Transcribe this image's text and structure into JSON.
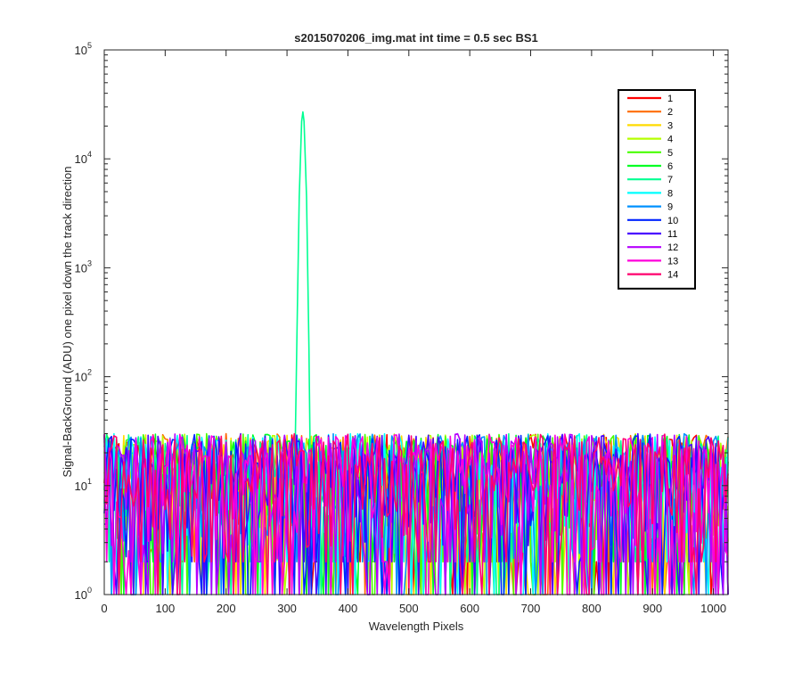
{
  "chart_data": {
    "type": "line",
    "title": "s2015070206_img.mat int time = 0.5 sec   BS1",
    "xlabel": "Wavelength Pixels",
    "ylabel": "Signal-BackGround (ADU) one pixel down the track direction",
    "xlim": [
      0,
      1024
    ],
    "ylim": [
      1,
      100000
    ],
    "yscale": "log",
    "grid": false,
    "legend_position": "top-right",
    "x_ticks": [
      "0",
      "100",
      "200",
      "300",
      "400",
      "500",
      "600",
      "700",
      "800",
      "900",
      "1000"
    ],
    "y_ticks": [
      {
        "base": "10",
        "exp": "0"
      },
      {
        "base": "10",
        "exp": "1"
      },
      {
        "base": "10",
        "exp": "2"
      },
      {
        "base": "10",
        "exp": "3"
      },
      {
        "base": "10",
        "exp": "4"
      },
      {
        "base": "10",
        "exp": "5"
      }
    ],
    "noise_floor_range": [
      1,
      30
    ],
    "peak": {
      "series": "7",
      "x": 326,
      "y": 27000
    },
    "series": [
      {
        "name": "1",
        "color": "#ff0000"
      },
      {
        "name": "2",
        "color": "#ff6d00"
      },
      {
        "name": "3",
        "color": "#ffdb00"
      },
      {
        "name": "4",
        "color": "#b6ff00"
      },
      {
        "name": "5",
        "color": "#49ff00"
      },
      {
        "name": "6",
        "color": "#00ff24"
      },
      {
        "name": "7",
        "color": "#00ff92"
      },
      {
        "name": "8",
        "color": "#00ffff"
      },
      {
        "name": "9",
        "color": "#0092ff"
      },
      {
        "name": "10",
        "color": "#0024ff"
      },
      {
        "name": "11",
        "color": "#4900ff"
      },
      {
        "name": "12",
        "color": "#b600ff"
      },
      {
        "name": "13",
        "color": "#ff00db"
      },
      {
        "name": "14",
        "color": "#ff006d"
      }
    ]
  }
}
